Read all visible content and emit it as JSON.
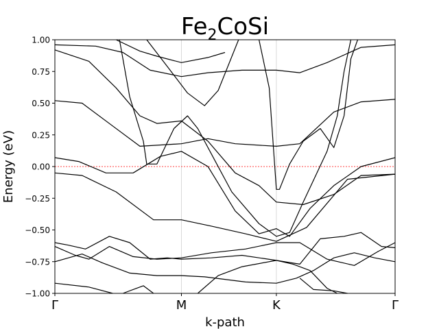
{
  "chart_data": {
    "type": "line",
    "title": "Fe₂CoSi",
    "title_parts": {
      "base": "Fe",
      "sub": "2",
      "rest": "CoSi"
    },
    "xlabel": "k-path",
    "ylabel": "Energy (eV)",
    "ylim": [
      -1.0,
      1.0
    ],
    "xlim": [
      0,
      1.0
    ],
    "x_ticks": [
      {
        "label": "Γ",
        "x": 0
      },
      {
        "label": "M",
        "x": 0.372
      },
      {
        "label": "K",
        "x": 0.651
      },
      {
        "label": "Γ",
        "x": 1.0
      }
    ],
    "y_ticks": [
      "−1.00",
      "−0.75",
      "−0.50",
      "−0.25",
      "0.00",
      "0.25",
      "0.50",
      "0.75",
      "1.00"
    ],
    "y_tick_values": [
      -1.0,
      -0.75,
      -0.5,
      -0.25,
      0.0,
      0.25,
      0.5,
      0.75,
      1.0
    ],
    "fermi_level": 0.0,
    "fermi_color": "#ff0000",
    "band_color": "#000000",
    "grid": "vertical lines at high-symmetry points",
    "series": [
      {
        "points": [
          [
            0,
            -0.05
          ],
          [
            0.08,
            -0.07
          ],
          [
            0.18,
            -0.2
          ],
          [
            0.29,
            -0.42
          ],
          [
            0.372,
            -0.42
          ],
          [
            0.46,
            -0.47
          ],
          [
            0.56,
            -0.53
          ],
          [
            0.651,
            -0.59
          ],
          [
            0.74,
            -0.48
          ],
          [
            0.86,
            -0.1
          ],
          [
            1.0,
            -0.06
          ]
        ]
      },
      {
        "points": [
          [
            0,
            0.07
          ],
          [
            0.07,
            0.04
          ],
          [
            0.15,
            -0.05
          ],
          [
            0.23,
            -0.05
          ],
          [
            0.31,
            0.08
          ],
          [
            0.372,
            0.12
          ],
          [
            0.45,
            0.0
          ],
          [
            0.53,
            -0.35
          ],
          [
            0.6,
            -0.53
          ],
          [
            0.651,
            -0.49
          ],
          [
            0.69,
            -0.55
          ],
          [
            0.75,
            -0.33
          ],
          [
            0.82,
            -0.15
          ],
          [
            0.9,
            0.0
          ],
          [
            1.0,
            0.07
          ]
        ]
      },
      {
        "points": [
          [
            0,
            0.52
          ],
          [
            0.08,
            0.5
          ],
          [
            0.17,
            0.32
          ],
          [
            0.25,
            0.16
          ],
          [
            0.372,
            0.18
          ],
          [
            0.45,
            0.22
          ],
          [
            0.53,
            0.18
          ],
          [
            0.651,
            0.16
          ],
          [
            0.72,
            0.18
          ],
          [
            0.82,
            0.43
          ],
          [
            0.9,
            0.51
          ],
          [
            1.0,
            0.53
          ]
        ]
      },
      {
        "points": [
          [
            0,
            0.92
          ],
          [
            0.1,
            0.83
          ],
          [
            0.18,
            0.62
          ],
          [
            0.25,
            0.4
          ],
          [
            0.3,
            0.34
          ],
          [
            0.372,
            0.36
          ],
          [
            0.45,
            0.2
          ],
          [
            0.53,
            -0.05
          ],
          [
            0.6,
            -0.15
          ],
          [
            0.651,
            -0.28
          ],
          [
            0.73,
            -0.3
          ],
          [
            0.82,
            -0.22
          ],
          [
            0.9,
            -0.07
          ],
          [
            1.0,
            -0.06
          ]
        ]
      },
      {
        "points": [
          [
            0,
            0.96
          ],
          [
            0.12,
            0.95
          ],
          [
            0.2,
            0.9
          ],
          [
            0.28,
            0.76
          ],
          [
            0.372,
            0.71
          ],
          [
            0.45,
            0.74
          ],
          [
            0.55,
            0.76
          ],
          [
            0.651,
            0.76
          ],
          [
            0.72,
            0.74
          ],
          [
            0.8,
            0.82
          ],
          [
            0.9,
            0.94
          ],
          [
            1.0,
            0.96
          ]
        ]
      },
      {
        "points": [
          [
            0.18,
            1.0
          ],
          [
            0.25,
            0.91
          ],
          [
            0.3,
            0.87
          ],
          [
            0.372,
            0.82
          ],
          [
            0.45,
            0.86
          ],
          [
            0.5,
            0.9
          ]
        ]
      },
      {
        "points": [
          [
            0.19,
            1.0
          ],
          [
            0.22,
            0.55
          ],
          [
            0.26,
            0.2
          ],
          [
            0.27,
            0.02
          ],
          [
            0.3,
            0.02
          ],
          [
            0.35,
            0.3
          ],
          [
            0.39,
            0.4
          ],
          [
            0.42,
            0.3
          ],
          [
            0.47,
            0.05
          ],
          [
            0.52,
            -0.2
          ],
          [
            0.6,
            -0.45
          ],
          [
            0.651,
            -0.55
          ],
          [
            0.69,
            -0.52
          ],
          [
            0.73,
            -0.28
          ],
          [
            0.8,
            0.12
          ],
          [
            0.83,
            0.4
          ],
          [
            0.85,
            0.75
          ],
          [
            0.87,
            1.0
          ]
        ]
      },
      {
        "points": [
          [
            0.27,
            1.0
          ],
          [
            0.33,
            0.79
          ],
          [
            0.39,
            0.58
          ],
          [
            0.44,
            0.48
          ],
          [
            0.48,
            0.6
          ],
          [
            0.54,
            1.0
          ]
        ]
      },
      {
        "points": [
          [
            0.6,
            1.0
          ],
          [
            0.63,
            0.62
          ],
          [
            0.651,
            -0.18
          ],
          [
            0.66,
            -0.18
          ],
          [
            0.69,
            0.02
          ],
          [
            0.73,
            0.2
          ],
          [
            0.78,
            0.3
          ],
          [
            0.82,
            0.15
          ],
          [
            0.85,
            0.4
          ],
          [
            0.87,
            0.85
          ],
          [
            0.89,
            1.0
          ]
        ]
      },
      {
        "points": [
          [
            0,
            -0.6
          ],
          [
            0.04,
            -0.62
          ],
          [
            0.09,
            -0.65
          ],
          [
            0.16,
            -0.55
          ],
          [
            0.22,
            -0.6
          ],
          [
            0.28,
            -0.73
          ],
          [
            0.33,
            -0.72
          ],
          [
            0.372,
            -0.73
          ],
          [
            0.46,
            -0.72
          ],
          [
            0.55,
            -0.7
          ],
          [
            0.651,
            -0.74
          ],
          [
            0.72,
            -0.77
          ],
          [
            0.78,
            -0.57
          ],
          [
            0.85,
            -0.55
          ],
          [
            0.9,
            -0.52
          ],
          [
            0.96,
            -0.63
          ],
          [
            1.0,
            -0.64
          ]
        ]
      },
      {
        "points": [
          [
            0,
            -0.63
          ],
          [
            0.06,
            -0.7
          ],
          [
            0.1,
            -0.73
          ],
          [
            0.16,
            -0.63
          ],
          [
            0.23,
            -0.71
          ],
          [
            0.3,
            -0.73
          ],
          [
            0.372,
            -0.72
          ],
          [
            0.46,
            -0.68
          ],
          [
            0.56,
            -0.65
          ],
          [
            0.651,
            -0.6
          ],
          [
            0.72,
            -0.6
          ],
          [
            0.8,
            -0.73
          ],
          [
            0.88,
            -0.78
          ],
          [
            0.95,
            -0.67
          ],
          [
            1.0,
            -0.6
          ]
        ]
      },
      {
        "points": [
          [
            0,
            -0.75
          ],
          [
            0.08,
            -0.69
          ],
          [
            0.14,
            -0.76
          ],
          [
            0.22,
            -0.84
          ],
          [
            0.3,
            -0.86
          ],
          [
            0.372,
            -0.86
          ],
          [
            0.44,
            -0.87
          ],
          [
            0.56,
            -0.91
          ],
          [
            0.651,
            -0.92
          ],
          [
            0.71,
            -0.88
          ],
          [
            0.76,
            -0.82
          ],
          [
            0.82,
            -0.72
          ],
          [
            0.88,
            -0.68
          ],
          [
            0.94,
            -0.72
          ],
          [
            1.0,
            -0.75
          ]
        ]
      },
      {
        "points": [
          [
            0,
            -0.92
          ],
          [
            0.1,
            -0.95
          ],
          [
            0.17,
            -1.0
          ]
        ]
      },
      {
        "points": [
          [
            0.2,
            -1.0
          ],
          [
            0.23,
            -0.97
          ],
          [
            0.26,
            -0.94
          ],
          [
            0.29,
            -1.0
          ]
        ]
      },
      {
        "points": [
          [
            0.42,
            -1.0
          ],
          [
            0.48,
            -0.86
          ],
          [
            0.55,
            -0.79
          ],
          [
            0.651,
            -0.74
          ],
          [
            0.7,
            -0.77
          ],
          [
            0.75,
            -0.82
          ],
          [
            0.8,
            -0.96
          ],
          [
            0.83,
            -1.0
          ]
        ]
      },
      {
        "points": [
          [
            0.72,
            -0.88
          ],
          [
            0.76,
            -0.97
          ],
          [
            0.82,
            -0.98
          ],
          [
            0.86,
            -1.0
          ]
        ]
      }
    ]
  }
}
